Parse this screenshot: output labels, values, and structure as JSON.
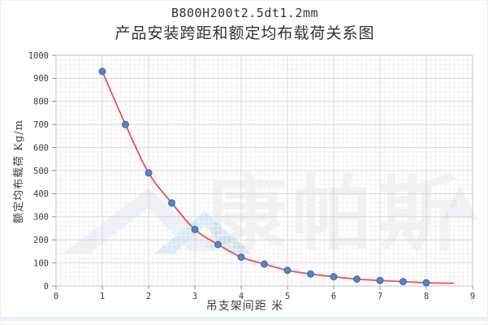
{
  "title": {
    "line1": "B800H200t2.5dt1.2mm",
    "line2": "产品安装跨距和额定均布载荷关系图"
  },
  "watermark": {
    "text": "康帕斯"
  },
  "chart_data": {
    "type": "scatter",
    "title": "B800H200t2.5dt1.2mm 产品安装跨距和额定均布载荷关系图",
    "xlabel": "吊支架间距  米",
    "ylabel": "额定均布载荷 Kg/m",
    "x": [
      1,
      1.5,
      2,
      2.5,
      3,
      3.5,
      4,
      4.5,
      5,
      5.5,
      6,
      6.5,
      7,
      7.5,
      8
    ],
    "y": [
      930,
      700,
      490,
      360,
      245,
      180,
      125,
      95,
      68,
      52,
      40,
      30,
      24,
      19,
      14
    ],
    "trend_end": [
      8.6,
      12
    ],
    "xlim": [
      0,
      9
    ],
    "ylim": [
      0,
      1000
    ],
    "x_ticks": [
      0,
      1,
      2,
      3,
      4,
      5,
      6,
      7,
      8,
      9
    ],
    "y_ticks": [
      0,
      100,
      200,
      300,
      400,
      500,
      600,
      700,
      800,
      900,
      1000
    ],
    "x_minor_step": 0.1,
    "y_minor_step": 20,
    "grid": true,
    "legend": "none",
    "point_color": "#4e86c8",
    "point_stroke": "#3b6ba8",
    "line_color": "#f23b3b",
    "grid_minor_color": "#f2f2f2",
    "grid_major_color": "#d8d8d8",
    "border_color": "#c3c3c3",
    "tick_color": "#8f8f8f",
    "tick_label_color": "#3d3d3d"
  }
}
